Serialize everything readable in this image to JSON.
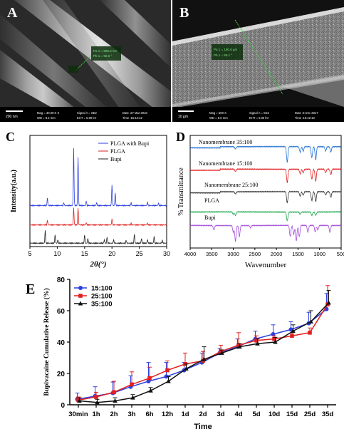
{
  "panels": {
    "A": {
      "letter": "A",
      "measure_lines": [
        "Pa 1 = 995.6 nm",
        "Pb 1 = 55.5 °"
      ],
      "scale_bar": "200 nm",
      "info_left": [
        "Mag = 40.00 K X",
        "WD = 8.4 mm"
      ],
      "info_mid": [
        "Signal A = SE2",
        "EHT = 5.00 kV"
      ],
      "info_right": [
        "Date :27 Mar 2018",
        "Time :15:44:42"
      ]
    },
    "B": {
      "letter": "B",
      "measure_lines": [
        "Pa 1 = 190.6 µm",
        "Pb 1 = 59.1 °"
      ],
      "scale_bar": "10 µm",
      "info_left": [
        "Mag = 500 X",
        "WD = 8.0 mm"
      ],
      "info_mid": [
        "Signal A = SE2",
        "EHT = 5.00 kV"
      ],
      "info_right": [
        "Date :3 Dec 2017",
        "Time :15:42:10"
      ]
    },
    "C": {
      "letter": "C"
    },
    "D": {
      "letter": "D"
    },
    "E": {
      "letter": "E"
    }
  },
  "colors": {
    "blue": "#2d3fe0",
    "red": "#e02020",
    "black": "#222222",
    "green": "#1aa64a",
    "purple": "#a44fd8",
    "blue_ftir": "#1f6fd0"
  },
  "chart_data": [
    {
      "type": "line",
      "panel": "C",
      "xlabel": "2θ(°)",
      "ylabel": "Intensity(a.u.)",
      "xlim": [
        5,
        30
      ],
      "x_ticks": [
        5,
        10,
        15,
        20,
        25,
        30
      ],
      "legend": "top-right",
      "series": [
        {
          "name": "PLGA with Bupi",
          "color": "#2d3fe0",
          "baseline": 0.72,
          "peaks": [
            [
              8.2,
              0.13
            ],
            [
              11.2,
              0.05
            ],
            [
              13.0,
              1.0
            ],
            [
              13.8,
              0.85
            ],
            [
              15.3,
              0.08
            ],
            [
              17.2,
              0.05
            ],
            [
              20.0,
              0.35
            ],
            [
              20.6,
              0.22
            ],
            [
              23.5,
              0.05
            ],
            [
              26.5,
              0.06
            ],
            [
              28.5,
              0.04
            ]
          ]
        },
        {
          "name": "PLGA",
          "color": "#e02020",
          "baseline": 0.38,
          "peaks": [
            [
              8.2,
              0.08
            ],
            [
              13.0,
              0.3
            ],
            [
              13.8,
              0.3
            ],
            [
              15.3,
              0.04
            ],
            [
              20.0,
              0.1
            ],
            [
              23.5,
              0.03
            ],
            [
              26.5,
              0.03
            ]
          ]
        },
        {
          "name": "Bupi",
          "color": "#222222",
          "baseline": 0.06,
          "peaks": [
            [
              7.8,
              0.22
            ],
            [
              9.6,
              0.14
            ],
            [
              10.1,
              0.06
            ],
            [
              15.0,
              0.14
            ],
            [
              15.6,
              0.08
            ],
            [
              18.6,
              0.06
            ],
            [
              19.1,
              0.1
            ],
            [
              20.3,
              0.06
            ],
            [
              22.6,
              0.05
            ],
            [
              24.1,
              0.16
            ],
            [
              25.4,
              0.08
            ],
            [
              26.5,
              0.06
            ],
            [
              27.7,
              0.12
            ],
            [
              29.2,
              0.05
            ]
          ]
        }
      ]
    },
    {
      "type": "line",
      "panel": "D",
      "xlabel": "Wavenumber",
      "ylabel": "% Transmittance",
      "xlim": [
        4000,
        500
      ],
      "x_ticks": [
        4000,
        3500,
        3000,
        2500,
        2000,
        1500,
        1000,
        500
      ],
      "series": [
        {
          "name": "Nanomembrane 35:100",
          "color": "#1f6fd0",
          "baseline": 0.9,
          "dips": [
            [
              2950,
              0.02
            ],
            [
              1750,
              0.14
            ],
            [
              1450,
              0.05
            ],
            [
              1380,
              0.04
            ],
            [
              1180,
              0.1
            ],
            [
              1090,
              0.12
            ],
            [
              860,
              0.04
            ],
            [
              740,
              0.05
            ]
          ]
        },
        {
          "name": "Nanomembrane 15:100",
          "color": "#e02020",
          "baseline": 0.7,
          "dips": [
            [
              2950,
              0.02
            ],
            [
              1750,
              0.12
            ],
            [
              1450,
              0.04
            ],
            [
              1380,
              0.03
            ],
            [
              1180,
              0.09
            ],
            [
              1090,
              0.11
            ],
            [
              860,
              0.03
            ],
            [
              740,
              0.05
            ]
          ]
        },
        {
          "name": "Nanomembrane 25:100",
          "color": "#333333",
          "baseline": 0.5,
          "dips": [
            [
              2950,
              0.02
            ],
            [
              1750,
              0.1
            ],
            [
              1450,
              0.04
            ],
            [
              1380,
              0.03
            ],
            [
              1180,
              0.08
            ],
            [
              1090,
              0.09
            ],
            [
              860,
              0.03
            ],
            [
              740,
              0.05
            ]
          ]
        },
        {
          "name": "PLGA",
          "color": "#1aa64a",
          "baseline": 0.32,
          "dips": [
            [
              3000,
              0.02
            ],
            [
              2950,
              0.03
            ],
            [
              1750,
              0.08
            ],
            [
              1450,
              0.02
            ],
            [
              1180,
              0.03
            ],
            [
              1090,
              0.03
            ]
          ]
        },
        {
          "name": "Bupi",
          "color": "#a44fd8",
          "baseline": 0.2,
          "dips": [
            [
              3450,
              0.04
            ],
            [
              3000,
              0.06
            ],
            [
              2950,
              0.14
            ],
            [
              2860,
              0.1
            ],
            [
              2600,
              0.02
            ],
            [
              1680,
              0.1
            ],
            [
              1600,
              0.08
            ],
            [
              1540,
              0.14
            ],
            [
              1470,
              0.1
            ],
            [
              1270,
              0.06
            ],
            [
              1100,
              0.06
            ],
            [
              1040,
              0.04
            ],
            [
              760,
              0.06
            ]
          ]
        }
      ]
    },
    {
      "type": "line",
      "panel": "E",
      "xlabel": "Time",
      "ylabel": "Bupivacaine Cumulative Release (%)",
      "ylim": [
        0,
        80
      ],
      "y_ticks": [
        0,
        20,
        40,
        60,
        80
      ],
      "categories": [
        "30min",
        "1h",
        "2h",
        "3h",
        "6h",
        "12h",
        "1d",
        "2d",
        "3d",
        "4d",
        "5d",
        "10d",
        "15d",
        "25d",
        "35d"
      ],
      "legend": "top-left",
      "series": [
        {
          "name": "15:100",
          "color": "#2d3fe0",
          "marker": "circle",
          "values": [
            3.5,
            5.5,
            7.5,
            11.5,
            15,
            18,
            22,
            27,
            33,
            37,
            42,
            45,
            48,
            52,
            61
          ],
          "errors": [
            4,
            6,
            7,
            7,
            12,
            9,
            5,
            6,
            3,
            5,
            5,
            6,
            5,
            7,
            10
          ]
        },
        {
          "name": "25:100",
          "color": "#e02020",
          "marker": "square",
          "values": [
            3,
            5,
            8,
            13,
            17,
            22,
            26,
            28,
            34,
            38,
            41,
            42,
            44,
            46,
            64
          ],
          "errors": [
            2,
            3,
            7,
            8,
            7,
            6,
            7,
            6,
            4,
            8,
            3,
            2,
            2,
            3,
            12
          ]
        },
        {
          "name": "35:100",
          "color": "#111111",
          "marker": "triangle",
          "values": [
            2.5,
            1.5,
            2.5,
            4.5,
            9,
            15,
            23,
            29,
            33,
            37,
            39,
            40,
            47,
            53,
            65
          ],
          "errors": [
            2,
            2,
            2,
            2,
            2,
            3,
            3,
            8,
            2,
            2,
            3,
            3,
            4,
            7,
            8
          ]
        }
      ]
    }
  ]
}
